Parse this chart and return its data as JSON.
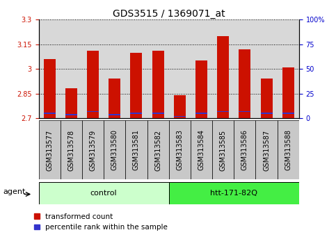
{
  "title": "GDS3515 / 1369071_at",
  "samples": [
    "GSM313577",
    "GSM313578",
    "GSM313579",
    "GSM313580",
    "GSM313581",
    "GSM313582",
    "GSM313583",
    "GSM313584",
    "GSM313585",
    "GSM313586",
    "GSM313587",
    "GSM313588"
  ],
  "red_values": [
    3.06,
    2.88,
    3.11,
    2.94,
    3.1,
    3.11,
    2.84,
    3.05,
    3.2,
    3.12,
    2.94,
    3.01
  ],
  "blue_values": [
    2.73,
    2.72,
    2.74,
    2.72,
    2.73,
    2.73,
    2.71,
    2.73,
    2.74,
    2.74,
    2.73,
    2.73
  ],
  "ymin": 2.7,
  "ymax": 3.3,
  "yticks_left": [
    2.7,
    2.85,
    3.0,
    3.15,
    3.3
  ],
  "ytick_left_labels": [
    "2.7",
    "2.85",
    "3",
    "3.15",
    "3.3"
  ],
  "yticks_right_pct": [
    0,
    25,
    50,
    75,
    100
  ],
  "ytick_right_labels": [
    "0",
    "25",
    "50",
    "75",
    "100%"
  ],
  "bar_width": 0.55,
  "bar_color_red": "#cc1100",
  "bar_color_blue": "#3333cc",
  "control_label": "control",
  "treatment_label": "htt-171-82Q",
  "agent_label": "agent",
  "legend_red": "transformed count",
  "legend_blue": "percentile rank within the sample",
  "group_color_control": "#ccffcc",
  "group_color_treatment": "#44ee44",
  "tick_color_left": "#cc1100",
  "tick_color_right": "#0000cc",
  "plot_bg_color": "#d8d8d8",
  "xtick_bg_color": "#c8c8c8",
  "title_fontsize": 10,
  "tick_fontsize": 7,
  "group_fontsize": 8,
  "legend_fontsize": 7.5,
  "agent_fontsize": 8
}
